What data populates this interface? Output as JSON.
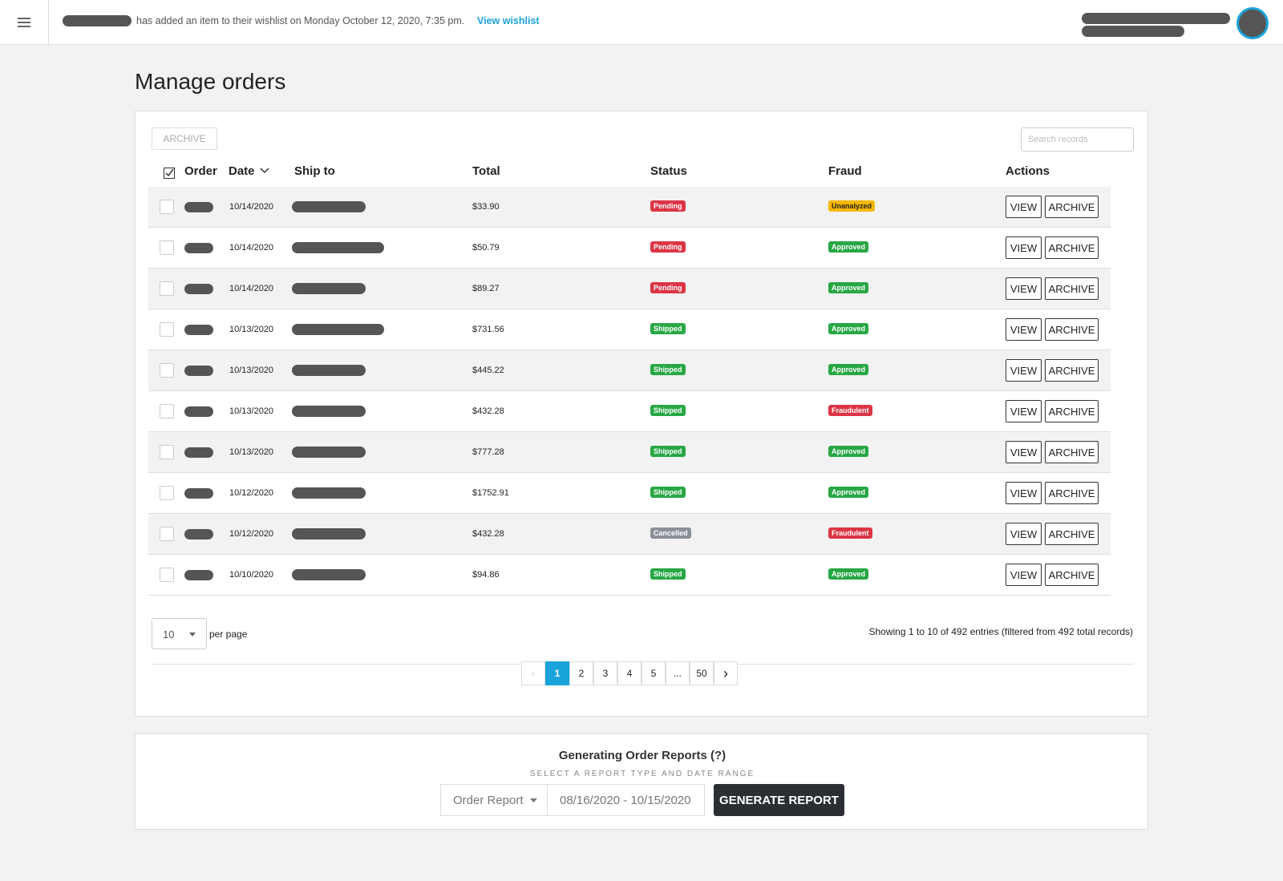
{
  "header": {
    "notification": "has added an item to their wishlist on Monday October 12, 2020, 7:35 pm.",
    "link": "View wishlist"
  },
  "page_title": "Manage orders",
  "toolbar": {
    "archive_button": "ARCHIVE",
    "search_placeholder": "Search records"
  },
  "table": {
    "columns": [
      "Order",
      "Date",
      "Ship to",
      "Total",
      "Status",
      "Fraud",
      "Actions"
    ],
    "actions": [
      "VIEW",
      "ARCHIVE"
    ],
    "rows": [
      {
        "date": "10/14/2020",
        "total": "$33.90",
        "status": "Pending",
        "status_color": "#dc3545",
        "fraud": "Unanalyzed",
        "fraud_color": "#f5b800"
      },
      {
        "date": "10/14/2020",
        "total": "$50.79",
        "status": "Pending",
        "status_color": "#dc3545",
        "fraud": "Approved",
        "fraud_color": "#28a745"
      },
      {
        "date": "10/14/2020",
        "total": "$89.27",
        "status": "Pending",
        "status_color": "#dc3545",
        "fraud": "Approved",
        "fraud_color": "#28a745"
      },
      {
        "date": "10/13/2020",
        "total": "$731.56",
        "status": "Shipped",
        "status_color": "#28a745",
        "fraud": "Approved",
        "fraud_color": "#28a745"
      },
      {
        "date": "10/13/2020",
        "total": "$445.22",
        "status": "Shipped",
        "status_color": "#28a745",
        "fraud": "Approved",
        "fraud_color": "#28a745"
      },
      {
        "date": "10/13/2020",
        "total": "$432.28",
        "status": "Shipped",
        "status_color": "#28a745",
        "fraud": "Fraudulent",
        "fraud_color": "#dc3545"
      },
      {
        "date": "10/13/2020",
        "total": "$777.28",
        "status": "Shipped",
        "status_color": "#28a745",
        "fraud": "Approved",
        "fraud_color": "#28a745"
      },
      {
        "date": "10/12/2020",
        "total": "$1752.91",
        "status": "Shipped",
        "status_color": "#28a745",
        "fraud": "Approved",
        "fraud_color": "#28a745"
      },
      {
        "date": "10/12/2020",
        "total": "$432.28",
        "status": "Cancelled",
        "status_color": "#8a8f98",
        "fraud": "Fraudulent",
        "fraud_color": "#dc3545"
      },
      {
        "date": "10/10/2020",
        "total": "$94.86",
        "status": "Shipped",
        "status_color": "#28a745",
        "fraud": "Approved",
        "fraud_color": "#28a745"
      }
    ]
  },
  "pagination": {
    "per_page": "10",
    "per_page_label": "per page",
    "summary": "Showing 1 to 10 of 492 entries (filtered from 492 total records)",
    "pages": [
      "1",
      "2",
      "3",
      "4",
      "5",
      "...",
      "50"
    ]
  },
  "reports": {
    "title": "Generating Order Reports (?)",
    "subtitle": "SELECT A REPORT TYPE AND DATE RANGE",
    "report_type": "Order Report",
    "date_range": "08/16/2020 - 10/15/2020",
    "button": "GENERATE REPORT"
  }
}
